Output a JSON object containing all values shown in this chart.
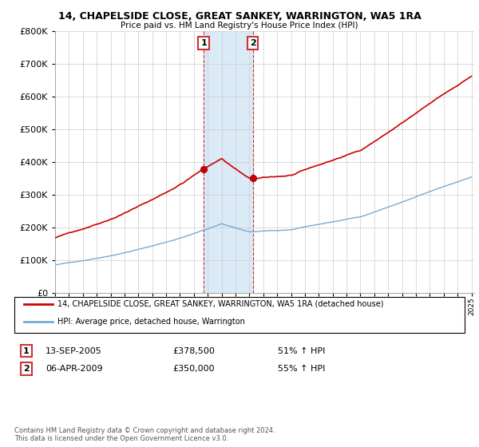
{
  "title": "14, CHAPELSIDE CLOSE, GREAT SANKEY, WARRINGTON, WA5 1RA",
  "subtitle": "Price paid vs. HM Land Registry's House Price Index (HPI)",
  "legend_line1": "14, CHAPELSIDE CLOSE, GREAT SANKEY, WARRINGTON, WA5 1RA (detached house)",
  "legend_line2": "HPI: Average price, detached house, Warrington",
  "transaction1_date": "13-SEP-2005",
  "transaction1_price": 378500,
  "transaction1_label": "51% ↑ HPI",
  "transaction1_year": 2005.708,
  "transaction2_date": "06-APR-2009",
  "transaction2_price": 350000,
  "transaction2_label": "55% ↑ HPI",
  "transaction2_year": 2009.25,
  "footnote": "Contains HM Land Registry data © Crown copyright and database right 2024.\nThis data is licensed under the Open Government Licence v3.0.",
  "hpi_color": "#7aaad4",
  "price_color": "#cc0000",
  "highlight_color": "#daeaf7",
  "highlight_border": "#cc3333",
  "ylim_min": 0,
  "ylim_max": 800000,
  "year_start": 1995,
  "year_end": 2025
}
